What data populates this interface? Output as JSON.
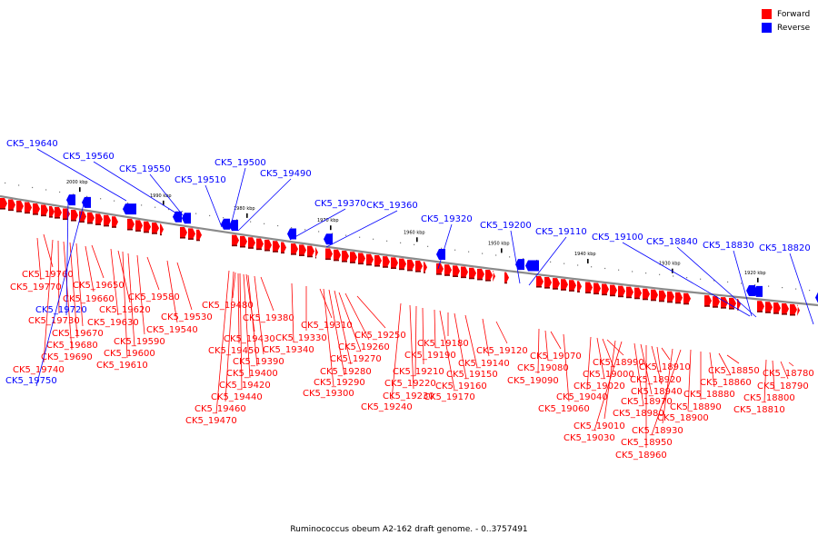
{
  "caption": "Ruminococcus obeum A2-162 draft genome. - 0..3757491",
  "legend": {
    "forward": {
      "label": "Forward",
      "color": "#ff0000"
    },
    "reverse": {
      "label": "Reverse",
      "color": "#0000ff"
    }
  },
  "colors": {
    "forward": "#ff0000",
    "reverse": "#0000ff",
    "backbone": "#999999"
  },
  "scale_labels": [
    "2000 kbp",
    "1990 kbp",
    "1980 kbp",
    "1970 kbp",
    "1960 kbp",
    "1950 kbp",
    "1940 kbp",
    "1930 kbp",
    "1920 kbp"
  ],
  "forward_genes": [
    "CK5_19760",
    "CK5_19770",
    "CK5_19650",
    "CK5_19660",
    "CK5_19730",
    "CK5_19670",
    "CK5_19620",
    "CK5_19630",
    "CK5_19580",
    "CK5_19680",
    "CK5_19590",
    "CK5_19690",
    "CK5_19600",
    "CK5_19740",
    "CK5_19610",
    "CK5_19530",
    "CK5_19540",
    "CK5_19480",
    "CK5_19380",
    "CK5_19310",
    "CK5_19430",
    "CK5_19330",
    "CK5_19450",
    "CK5_19340",
    "CK5_19390",
    "CK5_19250",
    "CK5_19260",
    "CK5_19270",
    "CK5_19400",
    "CK5_19280",
    "CK5_19420",
    "CK5_19290",
    "CK5_19300",
    "CK5_19440",
    "CK5_19460",
    "CK5_19470",
    "CK5_19180",
    "CK5_19190",
    "CK5_19140",
    "CK5_19120",
    "CK5_19210",
    "CK5_19150",
    "CK5_19220",
    "CK5_19160",
    "CK5_19230",
    "CK5_19170",
    "CK5_19240",
    "CK5_19070",
    "CK5_19080",
    "CK5_18990",
    "CK5_19090",
    "CK5_19000",
    "CK5_18910",
    "CK5_18920",
    "CK5_19020",
    "CK5_18940",
    "CK5_18850",
    "CK5_18780",
    "CK5_19040",
    "CK5_18970",
    "CK5_18880",
    "CK5_18860",
    "CK5_18790",
    "CK5_19060",
    "CK5_18980",
    "CK5_18890",
    "CK5_18800",
    "CK5_18900",
    "CK5_18810",
    "CK5_19010",
    "CK5_18930",
    "CK5_19030",
    "CK5_18950",
    "CK5_18960"
  ],
  "reverse_genes": [
    "CK5_19640",
    "CK5_19560",
    "CK5_19550",
    "CK5_19510",
    "CK5_19500",
    "CK5_19490",
    "CK5_19370",
    "CK5_19360",
    "CK5_19320",
    "CK5_19200",
    "CK5_19110",
    "CK5_19100",
    "CK5_18840",
    "CK5_18830",
    "CK5_18820",
    "CK5_19720",
    "CK5_19750"
  ]
}
